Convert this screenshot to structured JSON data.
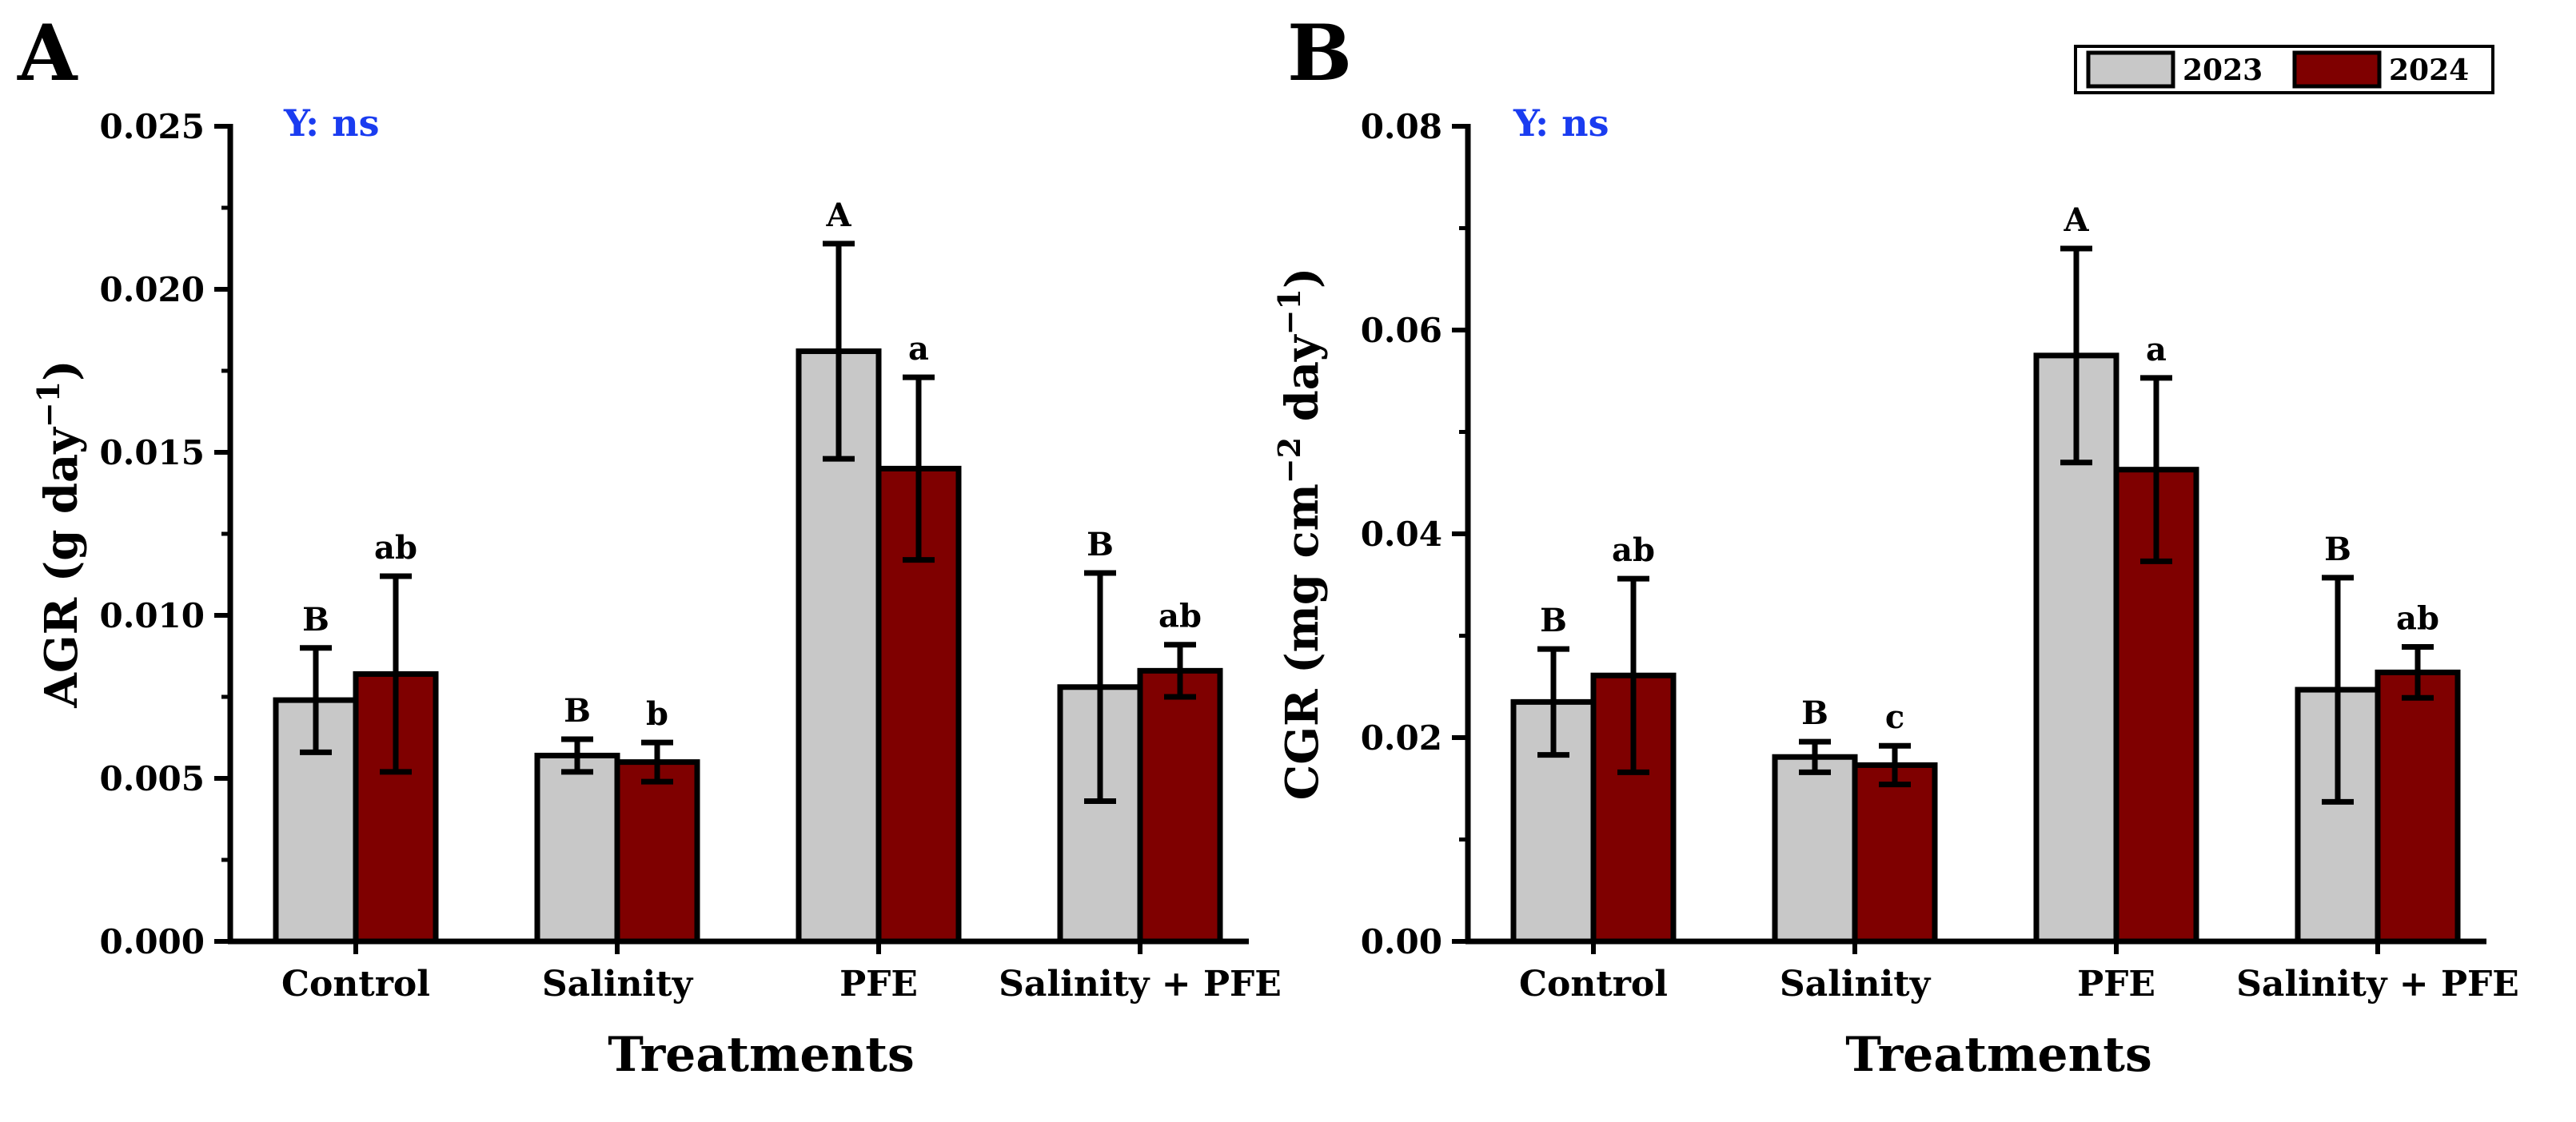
{
  "legend": {
    "entries": [
      {
        "label": "2023",
        "color": "#c8c8c8"
      },
      {
        "label": "2024",
        "color": "#7f0000"
      }
    ]
  },
  "chart_data": [
    {
      "type": "bar",
      "panel_label": "A",
      "annotation": "Y: ns",
      "annotation_color": "#1a3cf0",
      "xlabel": "Treatments",
      "ylabel_main": "AGR (g day",
      "ylabel_sup": "−1",
      "ylabel_end": ")",
      "ylim": [
        0,
        0.025
      ],
      "yticks": [
        0.0,
        0.005,
        0.01,
        0.015,
        0.02,
        0.025
      ],
      "ytick_labels": [
        "0.000",
        "0.005",
        "0.010",
        "0.015",
        "0.020",
        "0.025"
      ],
      "categories": [
        "Control",
        "Salinity",
        "PFE",
        "Salinity + PFE"
      ],
      "series": [
        {
          "name": "2023",
          "color": "#c8c8c8",
          "values": [
            0.0074,
            0.0057,
            0.0181,
            0.0078
          ],
          "errors": [
            0.0016,
            0.0005,
            0.0033,
            0.0035
          ],
          "letters": [
            "B",
            "B",
            "A",
            "B"
          ]
        },
        {
          "name": "2024",
          "color": "#7f0000",
          "values": [
            0.0082,
            0.0055,
            0.0145,
            0.0083
          ],
          "errors": [
            0.003,
            0.0006,
            0.0028,
            0.0008
          ],
          "letters": [
            "ab",
            "b",
            "a",
            "ab"
          ]
        }
      ]
    },
    {
      "type": "bar",
      "panel_label": "B",
      "annotation": "Y: ns",
      "annotation_color": "#1a3cf0",
      "xlabel": "Treatments",
      "ylabel_main": "CGR (mg cm",
      "ylabel_sup": "−2",
      "ylabel_mid": " day",
      "ylabel_sup2": "−1",
      "ylabel_end": ")",
      "ylim": [
        0,
        0.08
      ],
      "yticks": [
        0.0,
        0.02,
        0.04,
        0.06,
        0.08
      ],
      "ytick_labels": [
        "0.00",
        "0.02",
        "0.04",
        "0.06",
        "0.08"
      ],
      "categories": [
        "Control",
        "Salinity",
        "PFE",
        "Salinity + PFE"
      ],
      "series": [
        {
          "name": "2023",
          "color": "#c8c8c8",
          "values": [
            0.0235,
            0.0181,
            0.0575,
            0.0247
          ],
          "errors": [
            0.0052,
            0.0015,
            0.0105,
            0.011
          ],
          "letters": [
            "B",
            "B",
            "A",
            "B"
          ]
        },
        {
          "name": "2024",
          "color": "#7f0000",
          "values": [
            0.0261,
            0.0173,
            0.0463,
            0.0264
          ],
          "errors": [
            0.0095,
            0.0019,
            0.009,
            0.0025
          ],
          "letters": [
            "ab",
            "c",
            "a",
            "ab"
          ]
        }
      ]
    }
  ]
}
